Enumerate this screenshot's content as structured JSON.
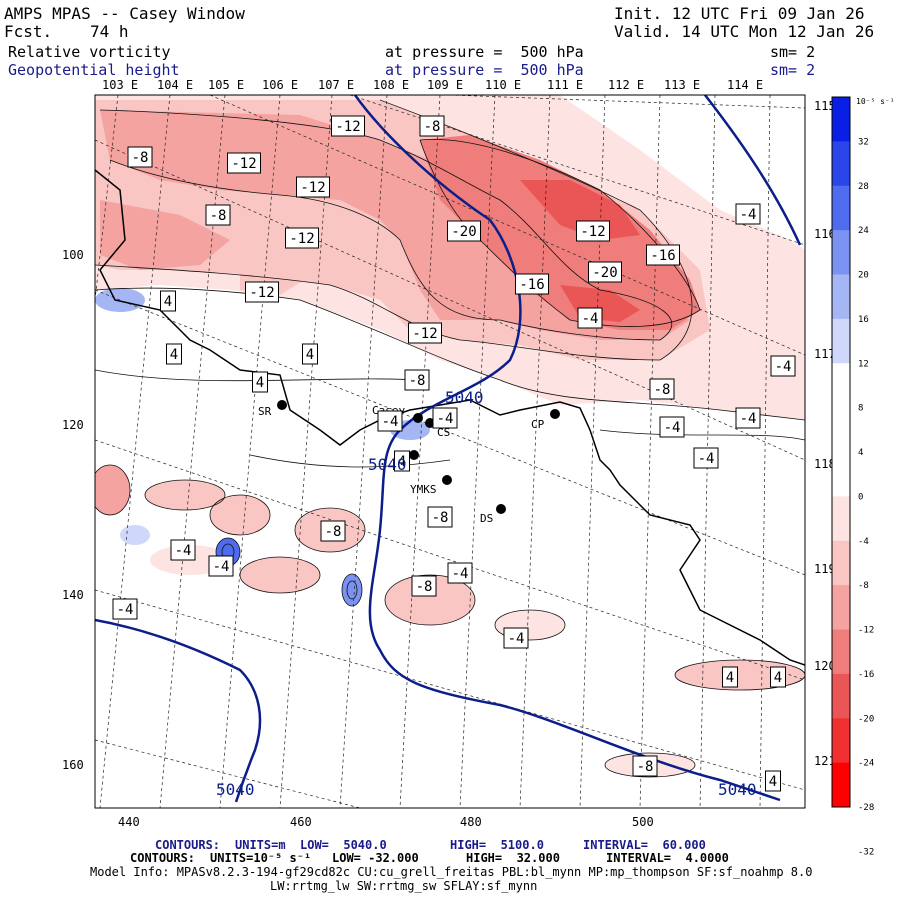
{
  "header": {
    "model": "AMPS MPAS -- Casey Window",
    "fcst_label": "Fcst.",
    "fcst_value": "74 h",
    "init": "Init. 12 UTC Fri 09 Jan 26",
    "valid": "Valid. 14 UTC Mon 12 Jan 26"
  },
  "fields": [
    {
      "name": "Relative vorticity",
      "pressure": "at pressure =  500 hPa",
      "sm": "sm= 2"
    },
    {
      "name": "Geopotential height",
      "pressure": "at pressure =  500 hPa",
      "sm": "sm= 2"
    }
  ],
  "lon_labels": [
    "103 E",
    "104 E",
    "105 E",
    "106 E",
    "107 E",
    "108 E",
    "109 E",
    "110 E",
    "111 E",
    "112 E",
    "113 E",
    "114 E"
  ],
  "lat_labels": [
    "115 E",
    "116 E",
    "117 E",
    "118 E",
    "119 E",
    "120 E",
    "121 E"
  ],
  "y_ticks": [
    "100",
    "120",
    "140",
    "160"
  ],
  "x_ticks": [
    "440",
    "460",
    "480",
    "500"
  ],
  "colorbar": {
    "unit": "10⁻⁵ s⁻¹",
    "labels": [
      "32",
      "28",
      "24",
      "20",
      "16",
      "12",
      "8",
      "4",
      "0",
      "-4",
      "-8",
      "-12",
      "-16",
      "-20",
      "-24",
      "-28",
      "-32"
    ],
    "colors": [
      "#0a1fe6",
      "#2a46ea",
      "#4f6cee",
      "#7a92f1",
      "#a5b6f5",
      "#cfd8fa",
      "#ffffff",
      "#ffffff",
      "#ffffff",
      "#fde4e2",
      "#f9c6c3",
      "#f4a3a0",
      "#ef7d7b",
      "#ea5655",
      "#f03030",
      "#ff0000"
    ]
  },
  "stations": [
    "SR",
    "Casey",
    "CS",
    "CP",
    "YMKS",
    "DS"
  ],
  "contour_labels": [
    "-12",
    "-8",
    "-8",
    "-12",
    "-12",
    "-8",
    "-12",
    "-20",
    "-12",
    "-16",
    "-16",
    "-20",
    "-4",
    "-4",
    "-12",
    "-12",
    "-8",
    "4",
    "4",
    "4",
    "4",
    "-8",
    "-4",
    "-4",
    "-4",
    "-4",
    "-8",
    "-4",
    "-4",
    "-4",
    "-8",
    "-4",
    "-4",
    "-8",
    "4",
    "4",
    "4",
    "-4",
    "-4",
    "4",
    "-8"
  ],
  "height_labels": [
    "5040",
    "5040",
    "5040",
    "5040"
  ],
  "footer": {
    "contours1_prefix": "CONTOURS:",
    "contours1_units": "UNITS=m",
    "contours1_low": "LOW=  5040.0",
    "contours1_high": "HIGH=  5100.0",
    "contours1_interval": "INTERVAL=  60.000",
    "contours2_prefix": "CONTOURS:",
    "contours2_units": "UNITS=10⁻⁵ s⁻¹",
    "contours2_low": "LOW= -32.000",
    "contours2_high": "HIGH=  32.000",
    "contours2_interval": "INTERVAL=  4.0000",
    "model_info": "Model Info: MPASv8.2.3-194-gf29cd82c CU:cu_grell_freitas PBL:bl_mynn MP:mp_thompson SF:sf_noahmp 8.0",
    "model_info2": "LW:rrtmg_lw SW:rrtmg_sw SFLAY:sf_mynn"
  }
}
